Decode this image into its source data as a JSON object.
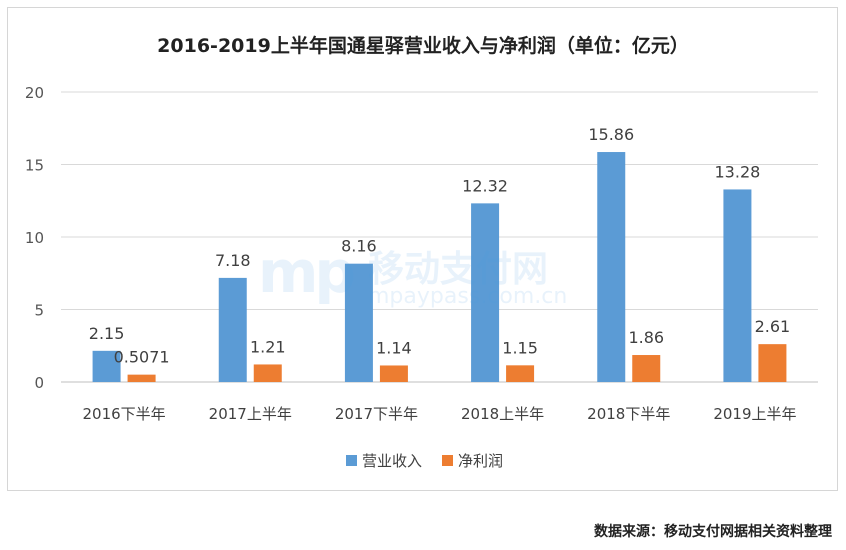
{
  "chart_data": {
    "type": "bar",
    "title": "2016-2019上半年国通星驿营业收入与净利润（单位：亿元）",
    "categories": [
      "2016下半年",
      "2017上半年",
      "2017下半年",
      "2018上半年",
      "2018下半年",
      "2019上半年"
    ],
    "series": [
      {
        "name": "营业收入",
        "color": "#5b9bd5",
        "values": [
          2.15,
          7.18,
          8.16,
          12.32,
          15.86,
          13.28
        ],
        "labels": [
          "2.15",
          "7.18",
          "8.16",
          "12.32",
          "15.86",
          "13.28"
        ]
      },
      {
        "name": "净利润",
        "color": "#ed7d31",
        "values": [
          0.5071,
          1.21,
          1.14,
          1.15,
          1.86,
          2.61
        ],
        "labels": [
          "0.5071",
          "1.21",
          "1.14",
          "1.15",
          "1.86",
          "2.61"
        ]
      }
    ],
    "ylim": [
      0,
      20
    ],
    "yticks": [
      0,
      5,
      10,
      15,
      20
    ],
    "grid": true,
    "legend_position": "bottom"
  },
  "watermark": {
    "logo": "mp",
    "cn": "移动支付网",
    "en": "mpaypass.com.cn"
  },
  "source": "数据来源：移动支付网据相关资料整理"
}
